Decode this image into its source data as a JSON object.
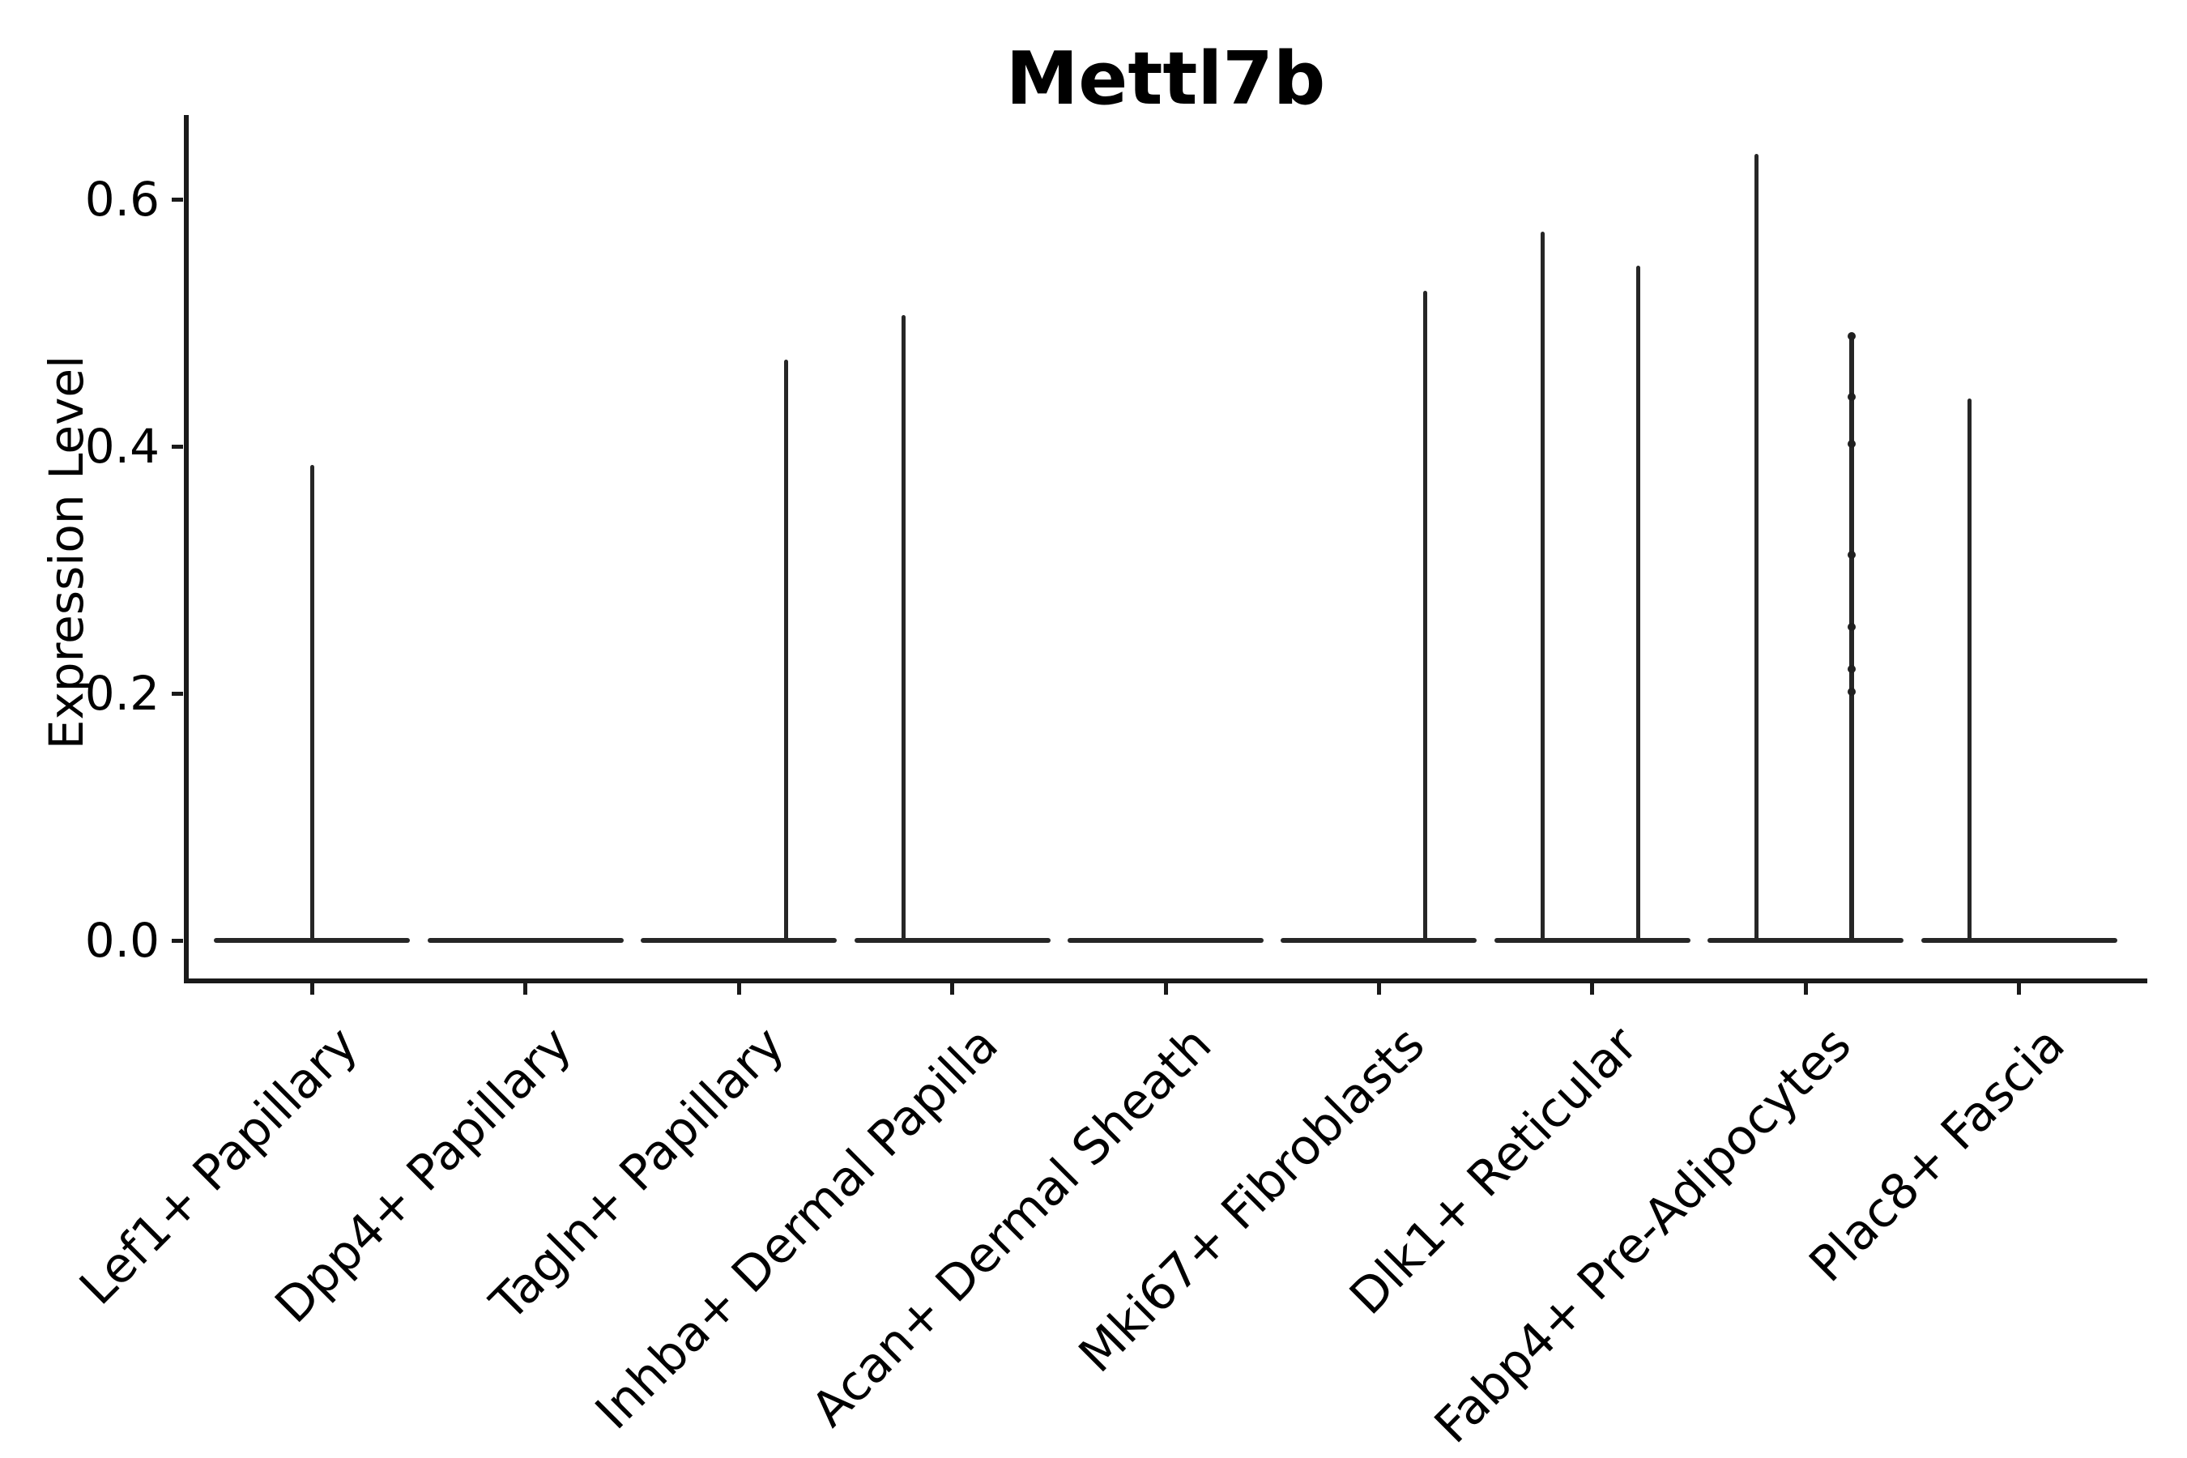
{
  "title": "Mettl7b",
  "y_axis": {
    "label": "Expression Level",
    "ticks": [
      "0.0",
      "0.2",
      "0.4",
      "0.6"
    ]
  },
  "colors": {
    "violin_line": "#262626",
    "spine": "#1a1a1a",
    "text": "#000000",
    "background": "#ffffff"
  },
  "chart_data": {
    "type": "violin",
    "title": "Mettl7b",
    "xlabel": "",
    "ylabel": "Expression Level",
    "ylim": [
      -0.033,
      0.668
    ],
    "yticks": [
      0.0,
      0.2,
      0.4,
      0.6
    ],
    "grid": false,
    "legend": "none",
    "categories": [
      "Lef1+ Papillary",
      "Dpp4+ Papillary",
      "Tagln+ Papillary",
      "Inhba+ Dermal Papilla",
      "Acan+ Dermal Sheath",
      "Mki67+ Fibroblasts",
      "Dlk1+ Reticular",
      "Fabp4+ Pre-Adipocytes",
      "Plac8+ Fascia"
    ],
    "violins": [
      {
        "category": "Lef1+ Papillary",
        "baseline_value": 0.0,
        "spikes": [
          {
            "offset": 0.0,
            "max": 0.385
          }
        ]
      },
      {
        "category": "Dpp4+ Papillary",
        "baseline_value": 0.0,
        "spikes": []
      },
      {
        "category": "Tagln+ Papillary",
        "baseline_value": 0.0,
        "spikes": [
          {
            "offset": 0.221,
            "max": 0.47
          }
        ]
      },
      {
        "category": "Inhba+ Dermal Papilla",
        "baseline_value": 0.0,
        "spikes": [
          {
            "offset": -0.229,
            "max": 0.506
          }
        ]
      },
      {
        "category": "Acan+ Dermal Sheath",
        "baseline_value": 0.0,
        "spikes": []
      },
      {
        "category": "Mki67+ Fibroblasts",
        "baseline_value": 0.0,
        "spikes": [
          {
            "offset": 0.216,
            "max": 0.526
          }
        ]
      },
      {
        "category": "Dlk1+ Reticular",
        "baseline_value": 0.0,
        "spikes": [
          {
            "offset": -0.233,
            "max": 0.574
          },
          {
            "offset": 0.215,
            "max": 0.546
          }
        ]
      },
      {
        "category": "Fabp4+ Pre-Adipocytes",
        "baseline_value": 0.0,
        "spikes": [
          {
            "offset": -0.231,
            "max": 0.637
          },
          {
            "offset": 0.217,
            "max": 0.489,
            "points": [
              0.489,
              0.44,
              0.402,
              0.312,
              0.254,
              0.22,
              0.201
            ]
          }
        ]
      },
      {
        "category": "Plac8+ Fascia",
        "baseline_value": 0.0,
        "spikes": [
          {
            "offset": -0.232,
            "max": 0.439
          }
        ]
      }
    ]
  }
}
